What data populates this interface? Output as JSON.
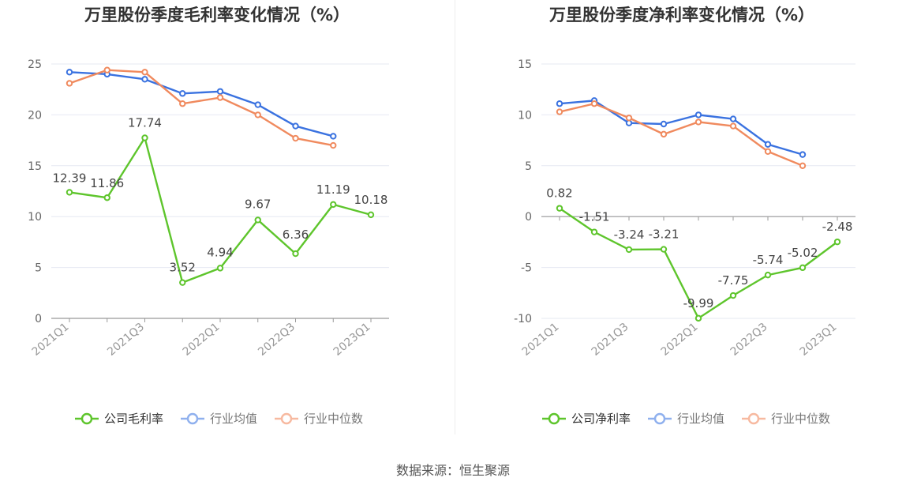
{
  "source_label": "数据来源：恒生聚源",
  "colors": {
    "company": "#5ec52c",
    "industry_avg": "#3a72e0",
    "industry_median": "#f08a5e",
    "grid": "#e6e8f2",
    "axis": "#999999"
  },
  "chart_data": [
    {
      "type": "line",
      "title": "万里股份季度毛利率变化情况（%）",
      "x": [
        "2021Q1",
        "2021Q2",
        "2021Q3",
        "2021Q4",
        "2022Q1",
        "2022Q2",
        "2022Q3",
        "2022Q4",
        "2023Q1"
      ],
      "x_tick_labels": [
        "2021Q1",
        "2021Q3",
        "2022Q1",
        "2022Q3",
        "2023Q1"
      ],
      "ylim": [
        0,
        25
      ],
      "y_ticks": [
        0,
        5,
        10,
        15,
        20,
        25
      ],
      "grid": true,
      "legend_position": "bottom",
      "series": [
        {
          "name": "公司毛利率",
          "values": [
            12.39,
            11.86,
            17.74,
            3.52,
            4.94,
            9.67,
            6.36,
            11.19,
            10.18
          ],
          "labels": [
            "12.39",
            "11.86",
            "17.74",
            "3.52",
            "4.94",
            "9.67",
            "6.36",
            "11.19",
            "10.18"
          ]
        },
        {
          "name": "行业均值",
          "values": [
            24.2,
            24.0,
            23.5,
            22.1,
            22.3,
            21.0,
            18.9,
            17.9,
            null
          ]
        },
        {
          "name": "行业中位数",
          "values": [
            23.1,
            24.4,
            24.2,
            21.1,
            21.7,
            20.0,
            17.7,
            17.0,
            null
          ]
        }
      ]
    },
    {
      "type": "line",
      "title": "万里股份季度净利率变化情况（%）",
      "x": [
        "2021Q1",
        "2021Q2",
        "2021Q3",
        "2021Q4",
        "2022Q1",
        "2022Q2",
        "2022Q3",
        "2022Q4",
        "2023Q1"
      ],
      "x_tick_labels": [
        "2021Q1",
        "2021Q3",
        "2022Q1",
        "2022Q3",
        "2023Q1"
      ],
      "ylim": [
        -10,
        15
      ],
      "y_ticks": [
        -10,
        -5,
        0,
        5,
        10,
        15
      ],
      "grid": true,
      "legend_position": "bottom",
      "series": [
        {
          "name": "公司净利率",
          "values": [
            0.82,
            -1.51,
            -3.24,
            -3.21,
            -9.99,
            -7.75,
            -5.74,
            -5.02,
            -2.48
          ],
          "labels": [
            "0.82",
            "-1.51",
            "-3.24",
            "-3.21",
            "-9.99",
            "-7.75",
            "-5.74",
            "-5.02",
            "-2.48"
          ]
        },
        {
          "name": "行业均值",
          "values": [
            11.1,
            11.4,
            9.2,
            9.1,
            10.0,
            9.6,
            7.1,
            6.1,
            null
          ]
        },
        {
          "name": "行业中位数",
          "values": [
            10.3,
            11.1,
            9.7,
            8.1,
            9.3,
            8.9,
            6.4,
            5.0,
            null
          ]
        }
      ]
    }
  ]
}
